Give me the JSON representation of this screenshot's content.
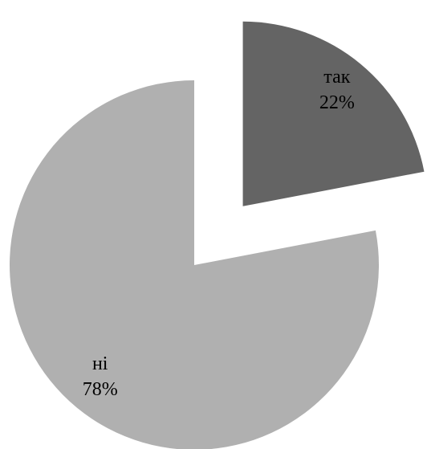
{
  "chart_data": {
    "type": "pie",
    "start_angle_deg": 0,
    "direction": "clockwise",
    "slices": [
      {
        "category": "так",
        "value": 22,
        "label": "22%",
        "color": "#646464",
        "exploded": true
      },
      {
        "category": "ні",
        "value": 78,
        "label": "78%",
        "color": "#b0b0b0",
        "exploded": false
      }
    ]
  }
}
